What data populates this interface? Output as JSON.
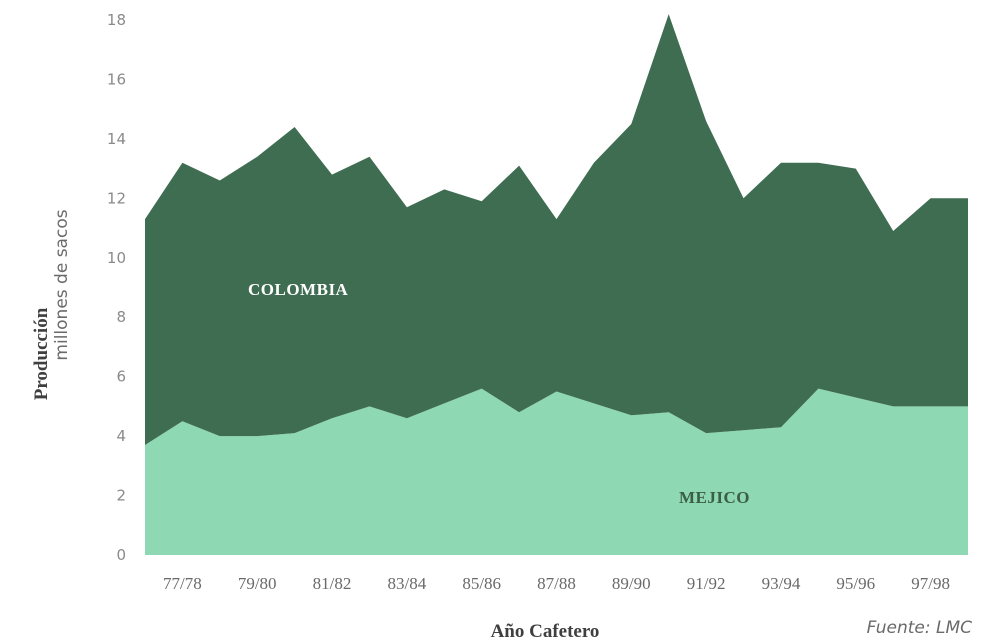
{
  "chart_data": {
    "type": "area",
    "stacked": true,
    "xlabel": "Año Cafetero",
    "ylabel": "Producción",
    "ylabel_sub": "millones de sacos",
    "source": "Fuente: LMC",
    "ylim": [
      0,
      18
    ],
    "yticks": [
      "0",
      "2",
      "4",
      "6",
      "8",
      "10",
      "12",
      "14",
      "16",
      "18"
    ],
    "x": [
      "76/77",
      "77/78",
      "78/79",
      "79/80",
      "80/81",
      "81/82",
      "82/83",
      "83/84",
      "84/85",
      "85/86",
      "86/87",
      "87/88",
      "88/89",
      "89/90",
      "90/91",
      "91/92",
      "92/93",
      "93/94",
      "94/95",
      "95/96",
      "96/97",
      "97/98",
      "98/99"
    ],
    "xtick_labels": [
      "77/78",
      "79/80",
      "81/82",
      "83/84",
      "85/86",
      "87/88",
      "89/90",
      "91/92",
      "93/94",
      "95/96",
      "97/98"
    ],
    "series": [
      {
        "name": "MEJICO",
        "color": "#8ed8b4",
        "values": [
          3.7,
          4.5,
          4.0,
          4.0,
          4.1,
          4.6,
          5.0,
          4.6,
          5.1,
          5.6,
          4.8,
          5.5,
          5.1,
          4.7,
          4.8,
          4.1,
          4.2,
          4.3,
          5.6,
          5.3,
          5.0,
          5.0,
          5.0
        ]
      },
      {
        "name": "COLOMBIA",
        "color": "#3f6d52",
        "values": [
          7.6,
          8.7,
          8.6,
          9.4,
          10.3,
          8.2,
          8.4,
          7.1,
          7.2,
          6.3,
          8.3,
          5.8,
          8.1,
          9.8,
          13.4,
          10.5,
          7.8,
          8.9,
          7.6,
          7.7,
          5.9,
          7.0,
          7.0
        ]
      }
    ],
    "grid": false,
    "legend": "none"
  }
}
